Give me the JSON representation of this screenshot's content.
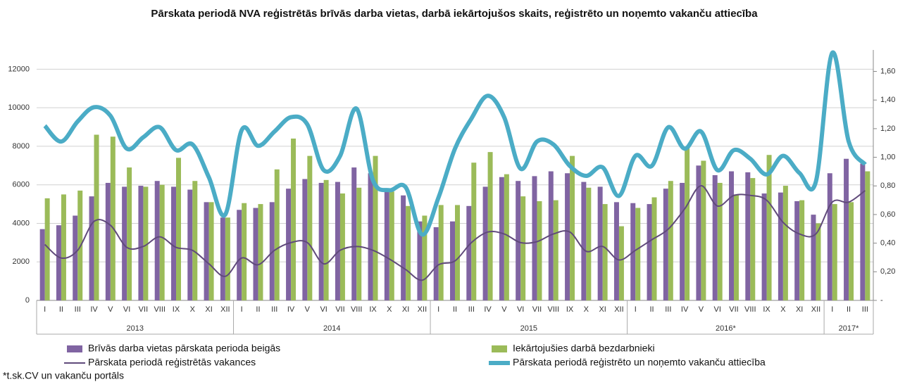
{
  "chart_data": {
    "type": "combo",
    "title": "Pārskata periodā NVA reģistrētās brīvās darba vietas, darbā iekārtojušos skaits, reģistrēto un noņemto vakanču attiecība",
    "categories": [
      "I",
      "II",
      "III",
      "IV",
      "V",
      "VI",
      "VII",
      "VIII",
      "IX",
      "X",
      "XI",
      "XII",
      "I",
      "II",
      "III",
      "IV",
      "V",
      "VI",
      "VII",
      "VIII",
      "IX",
      "X",
      "XI",
      "XII",
      "I",
      "II",
      "III",
      "IV",
      "V",
      "VI",
      "VII",
      "VIII",
      "IX",
      "X",
      "XI",
      "XII",
      "I",
      "II",
      "III",
      "IV",
      "V",
      "VI",
      "VII",
      "VIII",
      "IX",
      "X",
      "XI",
      "XII",
      "I",
      "II",
      "III"
    ],
    "x_groups": [
      {
        "label": "2013",
        "size": 12
      },
      {
        "label": "2014",
        "size": 12
      },
      {
        "label": "2015",
        "size": 12
      },
      {
        "label": "2016*",
        "size": 12
      },
      {
        "label": "2017*",
        "size": 3
      }
    ],
    "series": [
      {
        "name": "Brīvās darba vietas pārskata perioda beigās",
        "type": "bar",
        "color": "#8064a2",
        "values": [
          3700,
          3900,
          4400,
          5400,
          6100,
          5900,
          5950,
          6200,
          5900,
          5750,
          5100,
          4300,
          4700,
          4800,
          5100,
          5800,
          6300,
          6100,
          6150,
          6900,
          6600,
          5700,
          5450,
          4100,
          3800,
          4100,
          4900,
          5900,
          6400,
          6200,
          6450,
          6700,
          6600,
          6150,
          5900,
          5100,
          5050,
          5000,
          5800,
          6100,
          7000,
          6500,
          6700,
          6650,
          5550,
          5600,
          5150,
          4450,
          6600,
          7350,
          7100
        ]
      },
      {
        "name": "Iekārtojušies darbā bezdarbnieki",
        "type": "bar",
        "color": "#9bbb59",
        "values": [
          5300,
          5500,
          5700,
          8600,
          8500,
          6900,
          5900,
          6000,
          7400,
          6200,
          5100,
          4300,
          5050,
          5000,
          6800,
          8400,
          7500,
          6250,
          5550,
          5850,
          7500,
          5650,
          4900,
          4400,
          4950,
          4950,
          7150,
          7700,
          6550,
          5400,
          5150,
          5200,
          7500,
          5850,
          5000,
          3850,
          4800,
          5350,
          6200,
          7900,
          7250,
          6100,
          5500,
          6350,
          7550,
          5950,
          5200,
          4000,
          5000,
          5100,
          6700
        ]
      },
      {
        "name": "Pārskata periodā reģistrētās vakances",
        "type": "line",
        "color": "#604a7b",
        "values": [
          2900,
          2200,
          2600,
          4100,
          3900,
          2750,
          2800,
          3300,
          2750,
          2600,
          1900,
          1250,
          2200,
          1850,
          2600,
          3000,
          3000,
          1900,
          2600,
          2800,
          2600,
          2150,
          1600,
          1050,
          1850,
          2050,
          3000,
          3550,
          3450,
          3000,
          3050,
          3450,
          3550,
          2550,
          2800,
          2100,
          2600,
          3150,
          3700,
          4750,
          5950,
          4900,
          5450,
          5450,
          5200,
          4050,
          3450,
          3450,
          5100,
          5100,
          5700
        ]
      },
      {
        "name": "Pārskata periodā reģistrēto un noņemto vakanču attiecība",
        "type": "line",
        "axis": "y2",
        "color": "#4bacc6",
        "values": [
          1.22,
          1.11,
          1.25,
          1.35,
          1.29,
          1.06,
          1.14,
          1.21,
          1.05,
          1.09,
          0.86,
          0.6,
          1.19,
          1.08,
          1.18,
          1.28,
          1.23,
          0.91,
          1.01,
          1.34,
          0.84,
          0.77,
          0.79,
          0.46,
          0.72,
          1.06,
          1.27,
          1.43,
          1.28,
          0.92,
          1.11,
          1.09,
          0.94,
          0.87,
          0.93,
          0.73,
          1.01,
          0.94,
          1.21,
          1.06,
          1.18,
          0.91,
          1.05,
          0.99,
          0.88,
          1.01,
          0.89,
          0.83,
          1.73,
          1.11,
          0.95
        ]
      }
    ],
    "ylim": [
      0,
      13000
    ],
    "yticks": [
      0,
      2000,
      4000,
      6000,
      8000,
      10000,
      12000
    ],
    "y2lim": [
      0,
      1.75
    ],
    "y2ticks": [
      {
        "value": 0,
        "label": "-"
      },
      {
        "value": 0.2,
        "label": "0,20"
      },
      {
        "value": 0.4,
        "label": "0,40"
      },
      {
        "value": 0.6,
        "label": "0,60"
      },
      {
        "value": 0.8,
        "label": "0,80"
      },
      {
        "value": 1.0,
        "label": "1,00"
      },
      {
        "value": 1.2,
        "label": "1,20"
      },
      {
        "value": 1.4,
        "label": "1,40"
      },
      {
        "value": 1.6,
        "label": "1,60"
      }
    ],
    "grid": true,
    "legend": "bottom",
    "note": "*t.sk.CV un vakanču portāls"
  }
}
